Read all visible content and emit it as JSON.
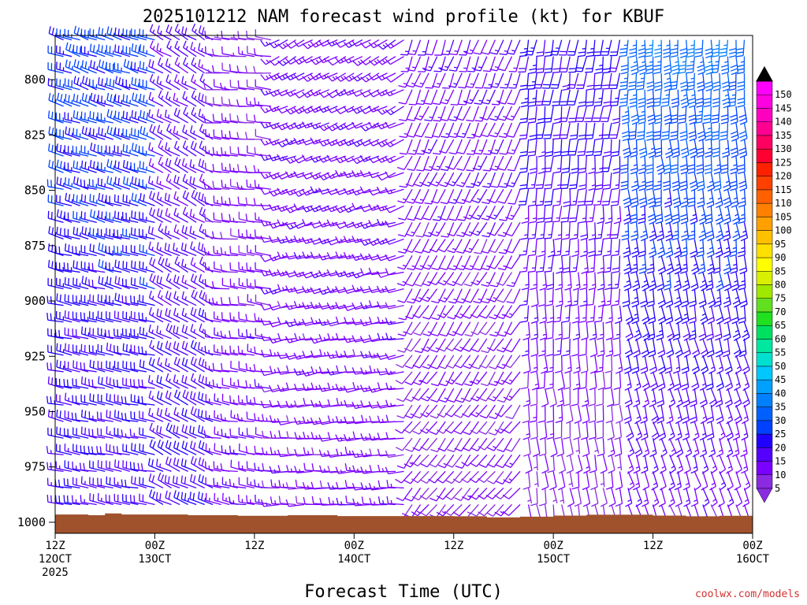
{
  "chart_data": {
    "type": "wind_barb_profile",
    "title": "2025101212 NAM forecast wind profile (kt) for KBUF",
    "xlabel": "Forecast Time (UTC)",
    "ylabel": "",
    "x_ticks": [
      {
        "hour": 0,
        "line1": "12Z",
        "line2": "12OCT",
        "line3": "2025"
      },
      {
        "hour": 12,
        "line1": "00Z",
        "line2": "13OCT",
        "line3": ""
      },
      {
        "hour": 24,
        "line1": "12Z",
        "line2": "",
        "line3": ""
      },
      {
        "hour": 36,
        "line1": "00Z",
        "line2": "14OCT",
        "line3": ""
      },
      {
        "hour": 48,
        "line1": "12Z",
        "line2": "",
        "line3": ""
      },
      {
        "hour": 60,
        "line1": "00Z",
        "line2": "15OCT",
        "line3": ""
      },
      {
        "hour": 72,
        "line1": "12Z",
        "line2": "",
        "line3": ""
      },
      {
        "hour": 84,
        "line1": "00Z",
        "line2": "16OCT",
        "line3": ""
      }
    ],
    "x_range": [
      0,
      84
    ],
    "y_range": [
      780,
      1005
    ],
    "y_ticks": [
      800,
      825,
      850,
      875,
      900,
      925,
      950,
      975,
      1000
    ],
    "colorbar_levels": [
      5,
      10,
      15,
      20,
      25,
      30,
      35,
      40,
      45,
      50,
      55,
      60,
      65,
      70,
      75,
      80,
      85,
      90,
      95,
      100,
      105,
      110,
      115,
      120,
      125,
      130,
      135,
      140,
      145,
      150
    ],
    "colorbar_colors": [
      "#8a2be2",
      "#7a00ff",
      "#5500ff",
      "#2000ff",
      "#0040ff",
      "#0060ff",
      "#0080ff",
      "#00a0ff",
      "#00c8ff",
      "#00e0d0",
      "#00e8a0",
      "#00e060",
      "#20e020",
      "#60e020",
      "#a0e800",
      "#d8f000",
      "#ffff00",
      "#ffe000",
      "#ffc000",
      "#ffa000",
      "#ff8000",
      "#ff6000",
      "#ff4000",
      "#ff2000",
      "#ff0030",
      "#ff0060",
      "#ff0090",
      "#ff00c0",
      "#ff00e0",
      "#ff00ff"
    ],
    "wind_regimes": [
      {
        "hours": [
          0,
          12
        ],
        "dir_low": 280,
        "dir_high": 290,
        "speed_low": 18,
        "speed_high": 27
      },
      {
        "hours": [
          12,
          19
        ],
        "dir_low": 295,
        "dir_high": 300,
        "speed_low": 20,
        "speed_high": 15
      },
      {
        "hours": [
          19,
          26
        ],
        "dir_low": 280,
        "dir_high": 275,
        "speed_low": 14,
        "speed_high": 10
      },
      {
        "hours": [
          26,
          42
        ],
        "dir_low": 270,
        "dir_high": 240,
        "speed_low": 12,
        "speed_high": 14
      },
      {
        "hours": [
          42,
          56
        ],
        "dir_low": 220,
        "dir_high": 200,
        "speed_low": 10,
        "speed_high": 14
      },
      {
        "hours": [
          56,
          68
        ],
        "dir_low": 170,
        "dir_high": 190,
        "speed_low": 8,
        "speed_high": 22
      },
      {
        "hours": [
          68,
          84
        ],
        "dir_low": 160,
        "dir_high": 180,
        "speed_low": 12,
        "speed_high": 34
      }
    ],
    "surface_pressure_trace": [
      {
        "hour": 0,
        "p": 996.5
      },
      {
        "hour": 4,
        "p": 996.8
      },
      {
        "hour": 6,
        "p": 996.0
      },
      {
        "hour": 8,
        "p": 996.5
      },
      {
        "hour": 16,
        "p": 996.8
      },
      {
        "hour": 22,
        "p": 997.1
      },
      {
        "hour": 28,
        "p": 996.8
      },
      {
        "hour": 34,
        "p": 997.2
      },
      {
        "hour": 48,
        "p": 997.3
      },
      {
        "hour": 52,
        "p": 997.8
      },
      {
        "hour": 56,
        "p": 997.5
      },
      {
        "hour": 60,
        "p": 997.0
      },
      {
        "hour": 64,
        "p": 996.6
      },
      {
        "hour": 72,
        "p": 997.0
      },
      {
        "hour": 76,
        "p": 997.3
      },
      {
        "hour": 80,
        "p": 997.1
      },
      {
        "hour": 84,
        "p": 996.5
      }
    ],
    "grid": false,
    "legend": "right"
  },
  "credit": "coolwx.com/models",
  "colors": {
    "terrain": "#a0522d",
    "credit": "#d23030",
    "frame": "#000000"
  }
}
